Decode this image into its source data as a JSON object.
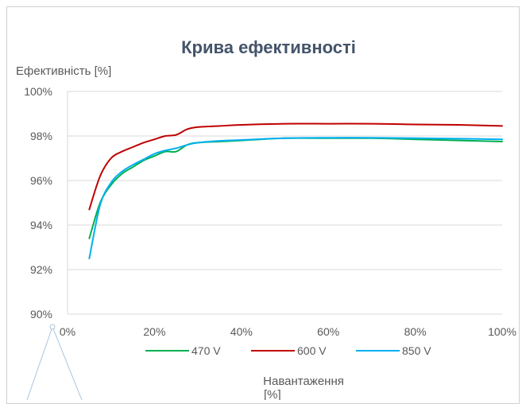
{
  "chart_data": {
    "type": "line",
    "title": "Крива ефективності",
    "ylabel": "Ефективність [%]",
    "xlabel_line1": "Навантаження",
    "xlabel_line2": "[%]",
    "xlim": [
      0,
      100
    ],
    "ylim": [
      90,
      100
    ],
    "x_ticks": [
      0,
      20,
      40,
      60,
      80,
      100
    ],
    "x_tick_labels": [
      "0%",
      "20%",
      "40%",
      "60%",
      "80%",
      "100%"
    ],
    "y_ticks": [
      90,
      92,
      94,
      96,
      98,
      100
    ],
    "y_tick_labels": [
      "90%",
      "92%",
      "94%",
      "96%",
      "98%",
      "100%"
    ],
    "grid": true,
    "legend_position": "bottom",
    "series": [
      {
        "name": "470 V",
        "color": "#00b050",
        "x": [
          5,
          7.5,
          10,
          12.5,
          15,
          17.5,
          20,
          22.5,
          25,
          27.5,
          30,
          35,
          40,
          50,
          60,
          70,
          80,
          90,
          100
        ],
        "y": [
          93.4,
          95.0,
          95.8,
          96.3,
          96.6,
          96.9,
          97.1,
          97.3,
          97.3,
          97.6,
          97.7,
          97.75,
          97.8,
          97.9,
          97.9,
          97.9,
          97.85,
          97.8,
          97.75
        ]
      },
      {
        "name": "600 V",
        "color": "#c00000",
        "x": [
          5,
          7.5,
          10,
          12.5,
          15,
          17.5,
          20,
          22.5,
          25,
          27.5,
          30,
          35,
          40,
          50,
          60,
          70,
          80,
          90,
          100
        ],
        "y": [
          94.7,
          96.2,
          97.0,
          97.3,
          97.5,
          97.7,
          97.85,
          98.0,
          98.05,
          98.3,
          98.4,
          98.45,
          98.5,
          98.55,
          98.55,
          98.55,
          98.52,
          98.5,
          98.45
        ]
      },
      {
        "name": "850 V",
        "color": "#00b0f0",
        "x": [
          5,
          7.5,
          10,
          12.5,
          15,
          17.5,
          20,
          22.5,
          25,
          27.5,
          30,
          35,
          40,
          50,
          60,
          70,
          80,
          90,
          100
        ],
        "y": [
          92.5,
          94.9,
          95.9,
          96.4,
          96.7,
          96.95,
          97.2,
          97.35,
          97.45,
          97.6,
          97.7,
          97.78,
          97.82,
          97.9,
          97.92,
          97.92,
          97.9,
          97.88,
          97.85
        ]
      }
    ]
  }
}
